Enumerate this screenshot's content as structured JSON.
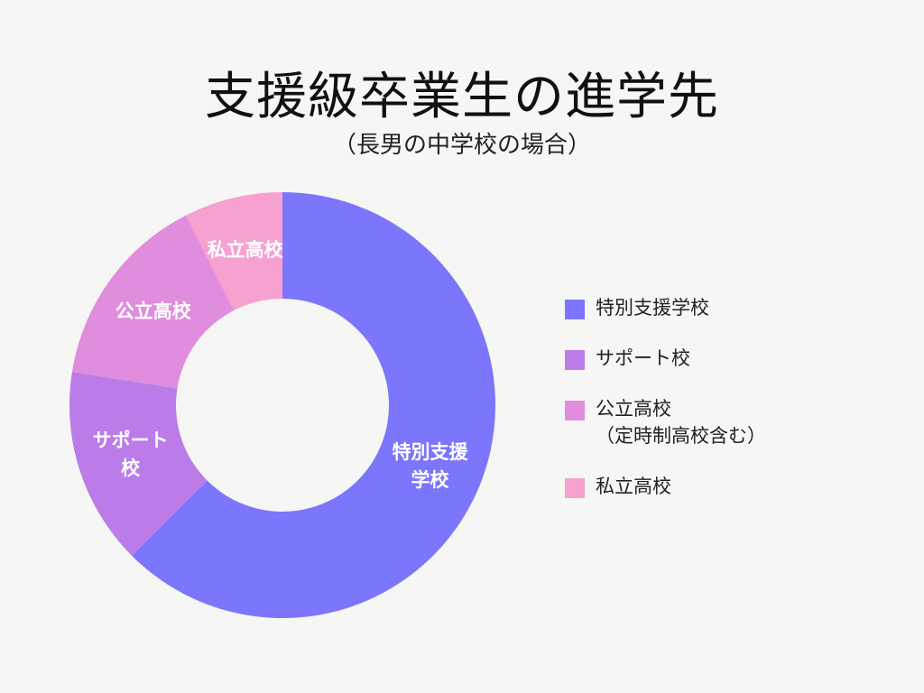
{
  "chart_data": {
    "type": "pie",
    "title": "支援級卒業生の進学先",
    "subtitle": "（長男の中学校の場合）",
    "donut": true,
    "categories": [
      "特別支援学校",
      "サポート校",
      "公立高校",
      "私立高校"
    ],
    "values": [
      62.5,
      15,
      15,
      7.5
    ],
    "slice_labels": [
      [
        "特別支援",
        "学校"
      ],
      [
        "サポート",
        "校"
      ],
      [
        "公立高校"
      ],
      [
        "私立高校"
      ]
    ],
    "colors": [
      "#7b76fc",
      "#bb7cea",
      "#e08ddd",
      "#f6a1cf"
    ],
    "legend": {
      "placement": "right",
      "entries": [
        {
          "label": "特別支援学校",
          "note": ""
        },
        {
          "label": "サポート校",
          "note": ""
        },
        {
          "label": "公立高校",
          "note": "（定時制高校含む）"
        },
        {
          "label": "私立高校",
          "note": ""
        }
      ]
    }
  }
}
